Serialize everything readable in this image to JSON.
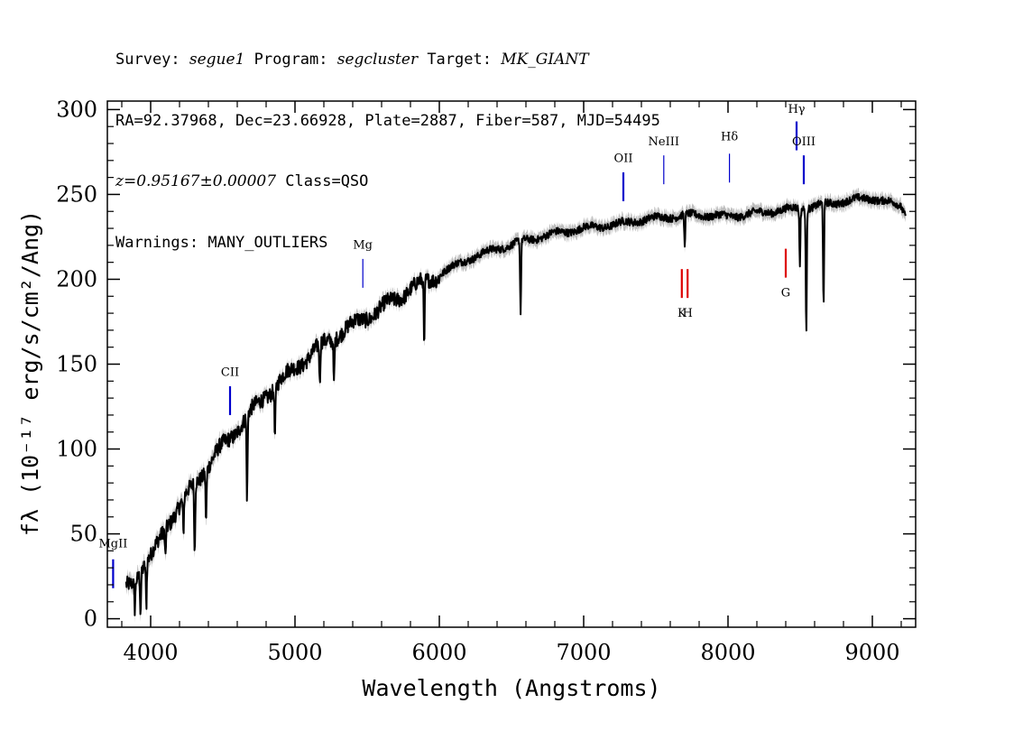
{
  "header": {
    "line1": {
      "survey_label": "Survey: ",
      "survey": "segue1",
      "program_label": " Program: ",
      "program": "segcluster",
      "target_label": " Target: ",
      "target": "MK_GIANT"
    },
    "line2": "RA=92.37968, Dec=23.66928, Plate=2887, Fiber=587, MJD=54495",
    "line3": {
      "z": "z=0.95167±0.00007",
      "class": " Class=QSO"
    },
    "line4": "Warnings: MANY_OUTLIERS"
  },
  "colors": {
    "flux": "#000000",
    "error_band": "#bdbdbd",
    "emission_line": "#0000cc",
    "absorption_line": "#dd0000"
  },
  "chart_data": {
    "type": "line",
    "xlabel": "Wavelength (Angstroms)",
    "ylabel": "fλ (10⁻¹⁷ erg/s/cm²/Ang)",
    "xlim": [
      3700,
      9300
    ],
    "ylim": [
      -5,
      305
    ],
    "xticks": [
      4000,
      5000,
      6000,
      7000,
      8000,
      9000
    ],
    "xtick_labels": [
      "4000",
      "5000",
      "6000",
      "7000",
      "8000",
      "9000"
    ],
    "yticks": [
      0,
      50,
      100,
      150,
      200,
      250,
      300
    ],
    "ytick_labels": [
      "0",
      "50",
      "100",
      "150",
      "200",
      "250",
      "300"
    ],
    "grid": false,
    "series": [
      {
        "continuum_x": [
          3830,
          3900,
          4000,
          4100,
          4200,
          4300,
          4400,
          4500,
          4600,
          4700,
          4800,
          4900,
          5000,
          5100,
          5200,
          5300,
          5400,
          5500,
          5600,
          5700,
          5800,
          5900,
          6000,
          6200,
          6400,
          6600,
          6800,
          7000,
          7200,
          7400,
          7600,
          7800,
          8000,
          8200,
          8400,
          8600,
          8800,
          9000,
          9200,
          9230
        ],
        "continuum_y": [
          20,
          25,
          35,
          55,
          65,
          80,
          90,
          102,
          112,
          122,
          132,
          140,
          148,
          155,
          162,
          168,
          173,
          178,
          183,
          188,
          195,
          198,
          203,
          212,
          218,
          223,
          227,
          230,
          232,
          235,
          237,
          238,
          237,
          239,
          241,
          243,
          246,
          248,
          243,
          238
        ],
        "absorption_x": [
          3890,
          3930,
          3970,
          4102,
          4227,
          4305,
          4384,
          4668,
          4861,
          5172,
          5270,
          5895,
          6563,
          7700,
          8498,
          8542,
          8662
        ],
        "absorption_y": [
          8,
          5,
          7,
          38,
          48,
          38,
          60,
          70,
          108,
          135,
          140,
          158,
          180,
          220,
          210,
          170,
          185
        ]
      }
    ],
    "line_markers": [
      {
        "label": "MgII",
        "wavelength": 3740,
        "type": "emission",
        "y_bottom": 18,
        "y_top": 35,
        "label_y": 42
      },
      {
        "label": "CII",
        "wavelength": 4550,
        "type": "emission",
        "y_bottom": 120,
        "y_top": 137,
        "label_y": 143
      },
      {
        "label": "Mg",
        "wavelength": 5470,
        "type": "emission",
        "y_bottom": 195,
        "y_top": 212,
        "label_y": 218
      },
      {
        "label": "OII",
        "wavelength": 7275,
        "type": "emission",
        "y_bottom": 246,
        "y_top": 263,
        "label_y": 269
      },
      {
        "label": "NeIII",
        "wavelength": 7555,
        "type": "emission",
        "y_bottom": 256,
        "y_top": 273,
        "label_y": 279
      },
      {
        "label": "Hδ",
        "wavelength": 8010,
        "type": "emission",
        "y_bottom": 257,
        "y_top": 274,
        "label_y": 282
      },
      {
        "label": "Hγ",
        "wavelength": 8475,
        "type": "emission",
        "y_bottom": 276,
        "y_top": 293,
        "label_y": 298
      },
      {
        "label": "OIII",
        "wavelength": 8525,
        "type": "emission",
        "y_bottom": 256,
        "y_top": 273,
        "label_y": 279
      },
      {
        "label": "K",
        "wavelength": 7680,
        "type": "absorption",
        "y_bottom": 189,
        "y_top": 206,
        "label_y": 178
      },
      {
        "label": "H",
        "wavelength": 7720,
        "type": "absorption",
        "y_bottom": 189,
        "y_top": 206,
        "label_y": 178
      },
      {
        "label": "G",
        "wavelength": 8400,
        "type": "absorption",
        "y_bottom": 201,
        "y_top": 218,
        "label_y": 190
      }
    ]
  }
}
